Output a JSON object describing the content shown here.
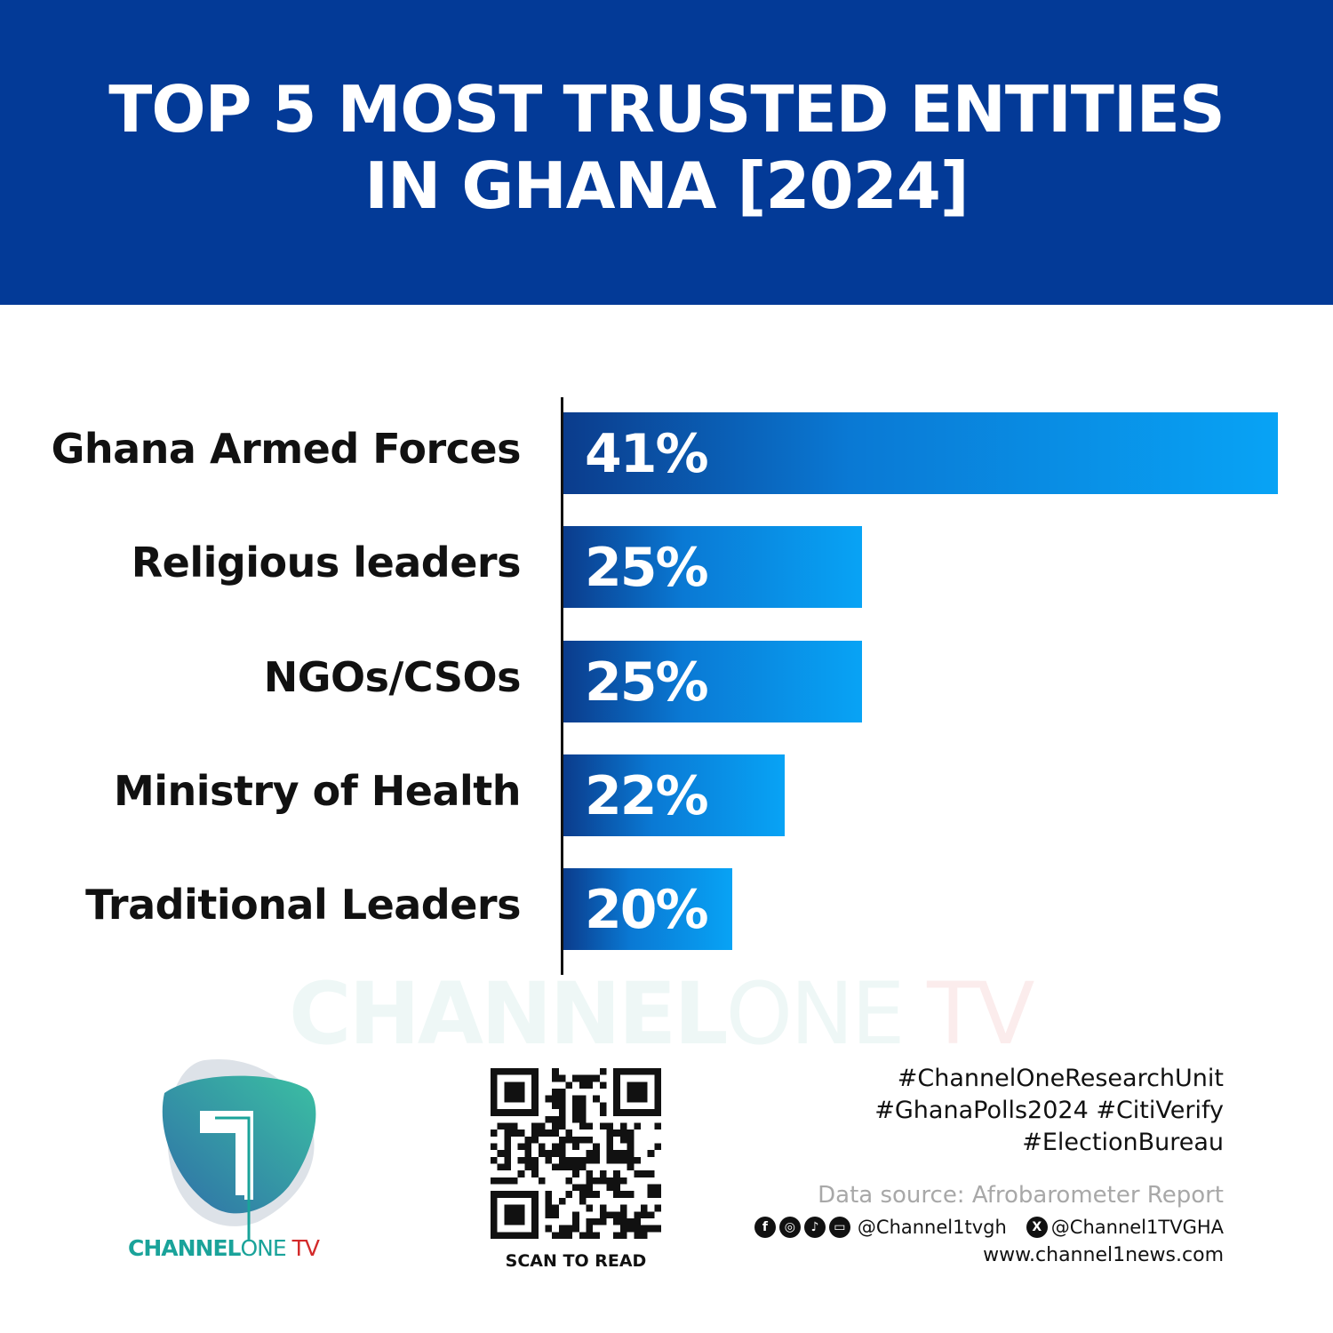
{
  "header": {
    "title_line1": "TOP 5 MOST TRUSTED ENTITIES",
    "title_line2": "IN GHANA [2024]",
    "background": "#033a97"
  },
  "chart_data": {
    "type": "bar",
    "orientation": "horizontal",
    "categories": [
      "Ghana Armed Forces",
      "Religious leaders",
      "NGOs/CSOs",
      "Ministry of Health",
      "Traditional Leaders"
    ],
    "values": [
      41,
      25,
      25,
      22,
      20
    ],
    "value_labels": [
      "41%",
      "25%",
      "25%",
      "22%",
      "20%"
    ],
    "title": "TOP 5 MOST TRUSTED ENTITIES IN GHANA [2024]",
    "grid": false,
    "bar_gradient": [
      "#0b3c8c",
      "#08a3f5"
    ]
  },
  "watermark": {
    "part1": "CHANNEL",
    "part2": "ONE",
    "part3": " TV"
  },
  "logo": {
    "part1": "CHANNEL",
    "part2": "ONE",
    "part3": " TV"
  },
  "qr": {
    "label": "SCAN TO READ"
  },
  "footer": {
    "hashtags": [
      "#ChannelOneResearchUnit",
      "#GhanaPolls2024 #CitiVerify",
      "#ElectionBureau"
    ],
    "source": "Data source: Afrobarometer Report",
    "social_icons": [
      "facebook-icon",
      "instagram-icon",
      "tiktok-icon",
      "youtube-icon"
    ],
    "handle1": "@Channel1tvgh",
    "x_icon": "x-icon",
    "handle2": "@Channel1TVGHA",
    "website": "www.channel1news.com"
  }
}
